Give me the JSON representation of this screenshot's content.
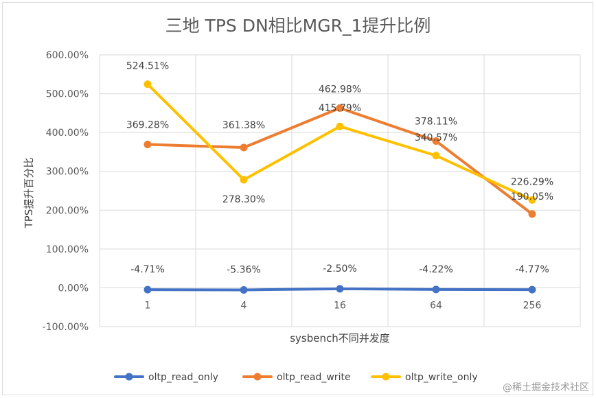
{
  "chart_data": {
    "type": "line",
    "title": "三地 TPS DN相比MGR_1提升比例",
    "xlabel": "sysbench不同并发度",
    "ylabel": "TPS提升百分比",
    "categories": [
      "1",
      "4",
      "16",
      "64",
      "256"
    ],
    "ylim": [
      -100,
      600
    ],
    "yticks": [
      -100,
      0,
      100,
      200,
      300,
      400,
      500,
      600
    ],
    "ytick_labels": [
      "-100.00%",
      "0.00%",
      "100.00%",
      "200.00%",
      "300.00%",
      "400.00%",
      "500.00%",
      "600.00%"
    ],
    "grid": true,
    "legend_position": "bottom",
    "series": [
      {
        "name": "oltp_read_only",
        "color": "#4472c4",
        "values": [
          -4.71,
          -5.36,
          -2.5,
          -4.22,
          -4.77
        ],
        "labels": [
          "-4.71%",
          "-5.36%",
          "-2.50%",
          "-4.22%",
          "-4.77%"
        ]
      },
      {
        "name": "oltp_read_write",
        "color": "#ed7d31",
        "values": [
          369.28,
          361.38,
          462.98,
          378.11,
          190.05
        ],
        "labels": [
          "369.28%",
          "361.38%",
          "462.98%",
          "378.11%",
          "190.05%"
        ]
      },
      {
        "name": "oltp_write_only",
        "color": "#ffc000",
        "values": [
          524.51,
          278.3,
          415.79,
          340.57,
          226.29
        ],
        "labels": [
          "524.51%",
          "278.30%",
          "415.79%",
          "340.57%",
          "226.29%"
        ]
      }
    ]
  },
  "watermark": "@稀土掘金技术社区"
}
